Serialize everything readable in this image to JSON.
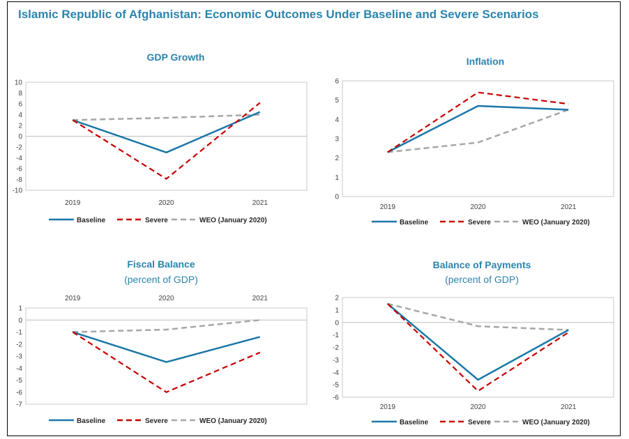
{
  "title": "Islamic Republic of Afghanistan: Economic Outcomes Under Baseline and Severe Scenarios",
  "colors": {
    "title": "#2b84ad",
    "baseline": "#1a77a8",
    "severe": "#c80000",
    "weo": "#a6a6a6"
  },
  "legend": {
    "baseline": "Baseline",
    "severe": "Severe",
    "weo": "WEO (January 2020)"
  },
  "chart_data": [
    {
      "type": "line",
      "title": "GDP Growth",
      "subtitle": "",
      "categories": [
        "2019",
        "2020",
        "2021"
      ],
      "ylim": [
        -10,
        10
      ],
      "ytick_step": 2,
      "yticks": [
        "10",
        "8",
        "6",
        "4",
        "2",
        "0",
        "-2",
        "-4",
        "-6",
        "-8",
        "-10"
      ],
      "x_axis_position": "bottom",
      "series": [
        {
          "name": "Baseline",
          "values": [
            3.0,
            -3.0,
            4.5
          ]
        },
        {
          "name": "Severe",
          "values": [
            3.0,
            -7.9,
            6.2
          ]
        },
        {
          "name": "WEO (January 2020)",
          "values": [
            3.0,
            3.4,
            4.0
          ]
        }
      ]
    },
    {
      "type": "line",
      "title": "Inflation",
      "subtitle": "",
      "categories": [
        "2019",
        "2020",
        "2021"
      ],
      "ylim": [
        0,
        6
      ],
      "ytick_step": 1,
      "yticks": [
        "6",
        "5",
        "4",
        "3",
        "2",
        "1",
        "0"
      ],
      "x_axis_position": "bottom",
      "series": [
        {
          "name": "Baseline",
          "values": [
            2.3,
            4.7,
            4.5
          ]
        },
        {
          "name": "Severe",
          "values": [
            2.3,
            5.4,
            4.8
          ]
        },
        {
          "name": "WEO (January 2020)",
          "values": [
            2.3,
            2.8,
            4.5
          ]
        }
      ]
    },
    {
      "type": "line",
      "title": "Fiscal Balance",
      "subtitle": "(percent of GDP)",
      "categories": [
        "2019",
        "2020",
        "2021"
      ],
      "ylim": [
        -7,
        1
      ],
      "ytick_step": 1,
      "yticks": [
        "1",
        "0",
        "-1",
        "-2",
        "-3",
        "-4",
        "-5",
        "-6",
        "-7"
      ],
      "x_axis_position": "top",
      "series": [
        {
          "name": "Baseline",
          "values": [
            -1.0,
            -3.5,
            -1.4
          ]
        },
        {
          "name": "Severe",
          "values": [
            -1.0,
            -6.0,
            -2.7
          ]
        },
        {
          "name": "WEO (January 2020)",
          "values": [
            -1.0,
            -0.8,
            0.0
          ]
        }
      ]
    },
    {
      "type": "line",
      "title": "Balance of Payments",
      "subtitle": "(percent of GDP)",
      "categories": [
        "2019",
        "2020",
        "2021"
      ],
      "ylim": [
        -6,
        2
      ],
      "ytick_step": 1,
      "yticks": [
        "2",
        "1",
        "0",
        "-1",
        "-2",
        "-3",
        "-4",
        "-5",
        "-6"
      ],
      "x_axis_position": "bottom",
      "series": [
        {
          "name": "Baseline",
          "values": [
            1.5,
            -4.6,
            -0.6
          ]
        },
        {
          "name": "Severe",
          "values": [
            1.5,
            -5.5,
            -0.8
          ]
        },
        {
          "name": "WEO (January 2020)",
          "values": [
            1.5,
            -0.3,
            -0.6
          ]
        }
      ]
    }
  ]
}
